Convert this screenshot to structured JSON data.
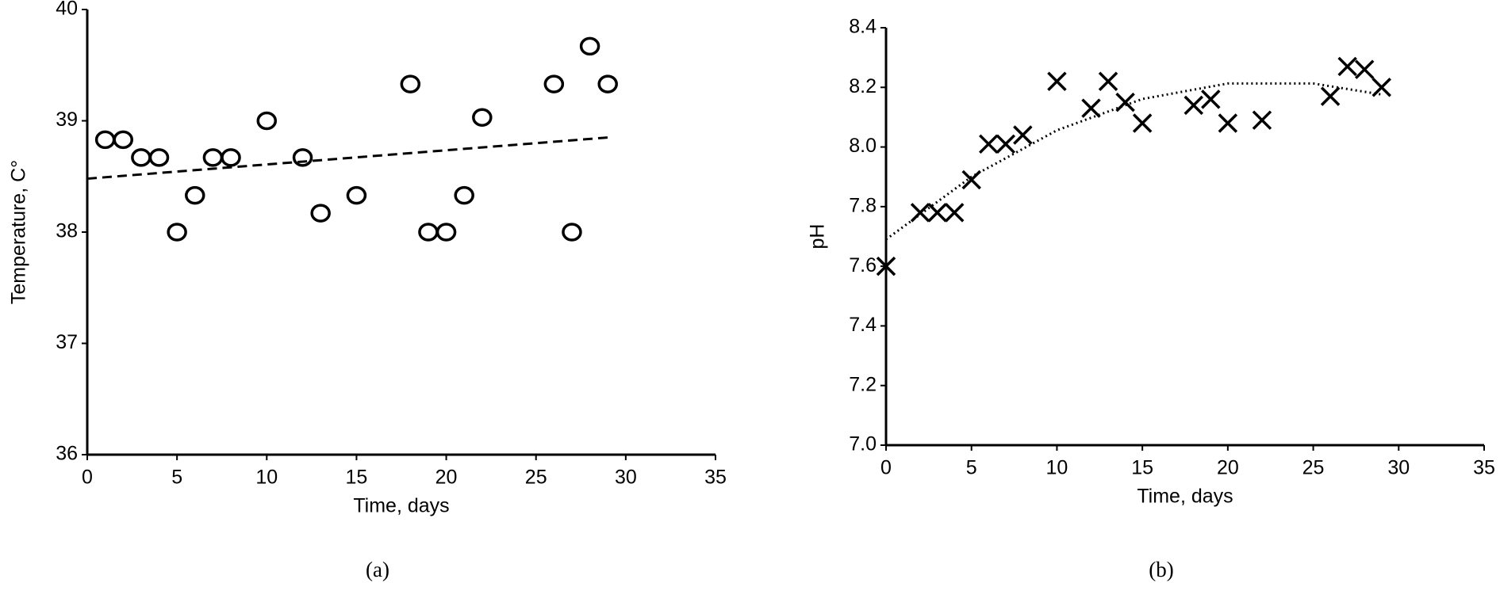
{
  "chart_data": [
    {
      "type": "scatter",
      "marker": "circle",
      "color": "#000000",
      "caption": "(a)",
      "xlabel": "Time, days",
      "ylabel": "Temperature, C°",
      "x": [
        1,
        2,
        3,
        4,
        5,
        6,
        7,
        8,
        10,
        12,
        13,
        15,
        18,
        19,
        20,
        21,
        22,
        26,
        27,
        28,
        29
      ],
      "values": [
        38.83,
        38.83,
        38.67,
        38.67,
        38.0,
        38.33,
        38.67,
        38.67,
        39.0,
        38.67,
        38.17,
        38.33,
        39.33,
        38.0,
        38.0,
        38.33,
        39.03,
        39.33,
        38.0,
        39.67,
        39.33
      ],
      "trendline": {
        "style": "dashed",
        "x": [
          0,
          29
        ],
        "values": [
          38.48,
          38.85
        ]
      },
      "xlim": [
        0,
        35
      ],
      "xticks": [
        0,
        5,
        10,
        15,
        20,
        25,
        30,
        35
      ],
      "ylim": [
        36,
        40
      ],
      "yticks": [
        36,
        37,
        38,
        39,
        40
      ]
    },
    {
      "type": "scatter",
      "marker": "cross",
      "color": "#000000",
      "caption": "(b)",
      "xlabel": "Time, days",
      "ylabel": "pH",
      "x": [
        0,
        2,
        3,
        4,
        5,
        6,
        7,
        8,
        10,
        12,
        13,
        14,
        15,
        18,
        19,
        20,
        22,
        26,
        27,
        28,
        29
      ],
      "values": [
        7.6,
        7.78,
        7.78,
        7.78,
        7.89,
        8.01,
        8.01,
        8.04,
        8.22,
        8.13,
        8.22,
        8.15,
        8.08,
        8.14,
        8.16,
        8.08,
        8.09,
        8.17,
        8.27,
        8.26,
        8.2
      ],
      "trendline": {
        "style": "dotted",
        "x": [
          0,
          5,
          10,
          15,
          20,
          25,
          29
        ],
        "values": [
          7.69,
          7.9,
          8.056,
          8.161,
          8.213,
          8.213,
          8.176
        ]
      },
      "xlim": [
        0,
        35
      ],
      "xticks": [
        0,
        5,
        10,
        15,
        20,
        25,
        30,
        35
      ],
      "ylim": [
        7.0,
        8.4
      ],
      "yticks": [
        {
          "value": 7.0,
          "label": "7.0"
        },
        7.2,
        7.4,
        7.6,
        7.8,
        {
          "value": 8.0,
          "label": "8.0"
        },
        8.2,
        8.4
      ]
    }
  ]
}
